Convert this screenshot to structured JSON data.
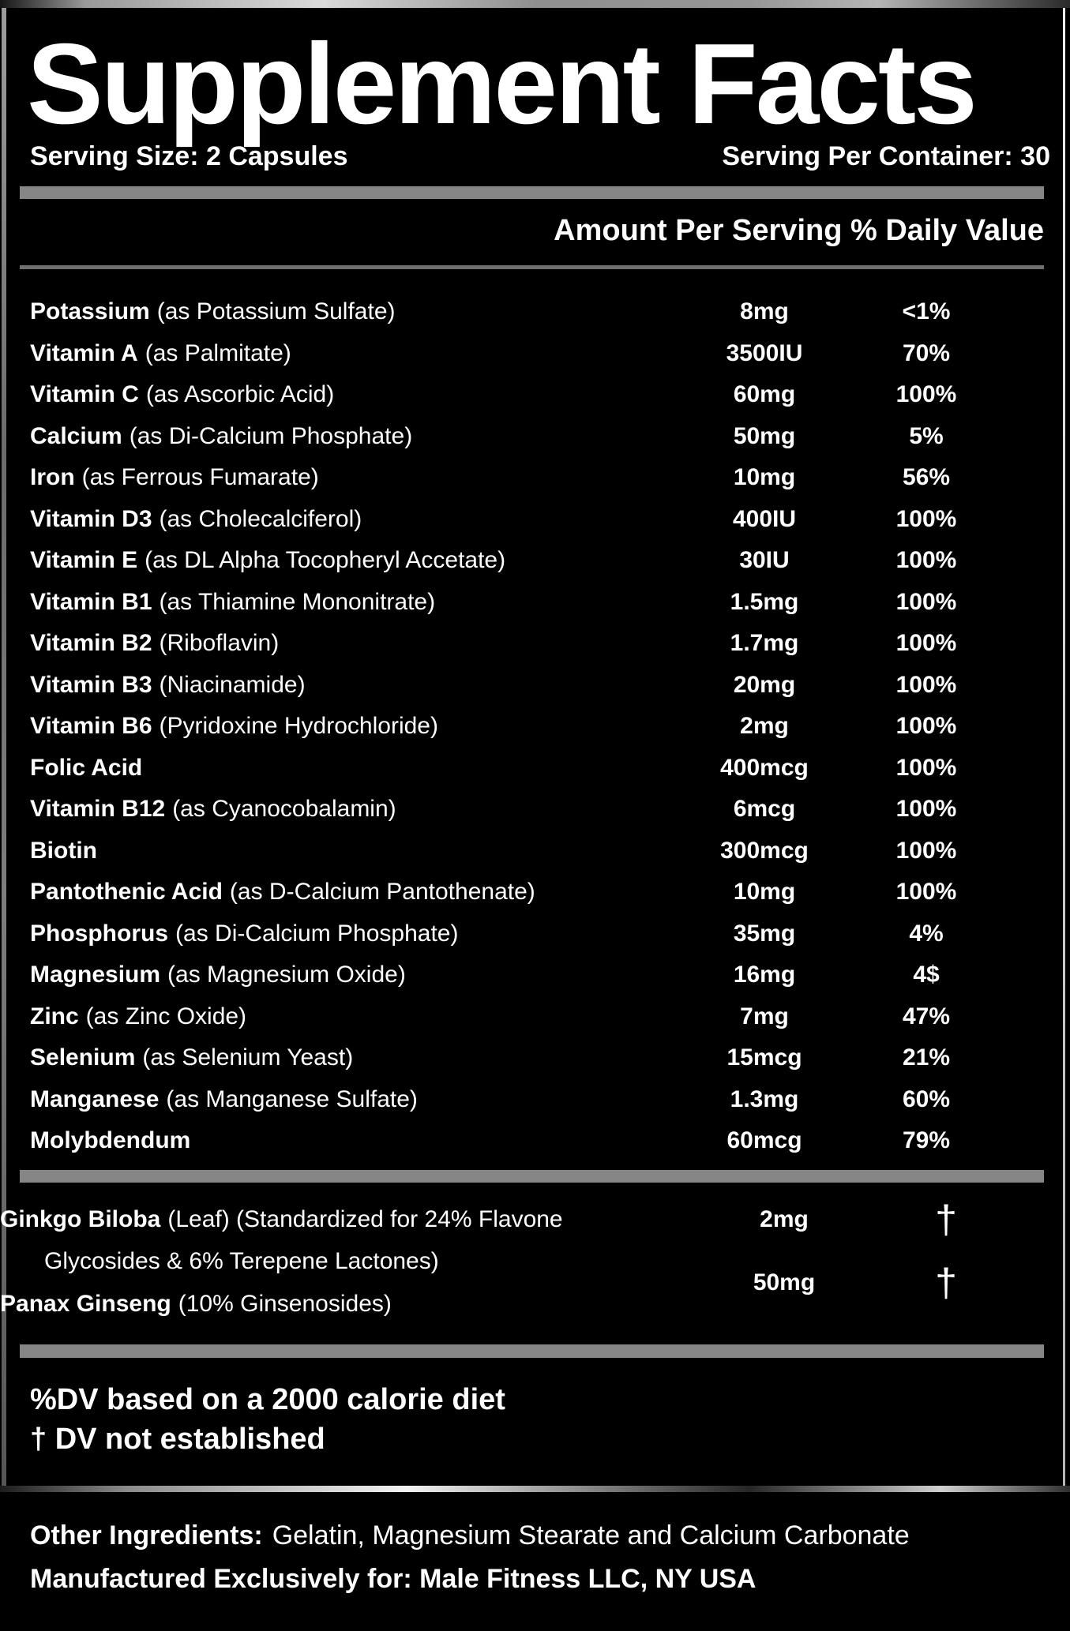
{
  "title": "Supplement Facts",
  "serving": {
    "size": "Serving Size: 2 Capsules",
    "per_container": "Serving Per Container: 30"
  },
  "column_header": "Amount Per Serving % Daily Value",
  "rows": [
    {
      "name": "Potassium",
      "detail": "(as Potassium Sulfate)",
      "amount": "8mg",
      "dv": "<1%"
    },
    {
      "name": "Vitamin A",
      "detail": "(as Palmitate)",
      "amount": "3500IU",
      "dv": "70%"
    },
    {
      "name": "Vitamin C",
      "detail": "(as Ascorbic Acid)",
      "amount": "60mg",
      "dv": "100%"
    },
    {
      "name": "Calcium",
      "detail": "(as Di-Calcium Phosphate)",
      "amount": "50mg",
      "dv": "5%"
    },
    {
      "name": "Iron",
      "detail": "(as Ferrous Fumarate)",
      "amount": "10mg",
      "dv": "56%"
    },
    {
      "name": "Vitamin D3",
      "detail": "(as Cholecalciferol)",
      "amount": "400IU",
      "dv": "100%"
    },
    {
      "name": "Vitamin E",
      "detail": "(as DL Alpha Tocopheryl Accetate)",
      "amount": "30IU",
      "dv": "100%"
    },
    {
      "name": "Vitamin B1",
      "detail": "(as Thiamine Mononitrate)",
      "amount": "1.5mg",
      "dv": "100%"
    },
    {
      "name": "Vitamin B2",
      "detail": "(Riboflavin)",
      "amount": "1.7mg",
      "dv": "100%"
    },
    {
      "name": "Vitamin B3",
      "detail": "(Niacinamide)",
      "amount": "20mg",
      "dv": "100%"
    },
    {
      "name": "Vitamin B6",
      "detail": "(Pyridoxine Hydrochloride)",
      "amount": "2mg",
      "dv": "100%"
    },
    {
      "name": "Folic Acid",
      "detail": "",
      "amount": "400mcg",
      "dv": "100%"
    },
    {
      "name": "Vitamin B12",
      "detail": "(as Cyanocobalamin)",
      "amount": "6mcg",
      "dv": "100%"
    },
    {
      "name": "Biotin",
      "detail": "",
      "amount": "300mcg",
      "dv": "100%"
    },
    {
      "name": "Pantothenic Acid",
      "detail": "(as D-Calcium Pantothenate)",
      "amount": "10mg",
      "dv": "100%"
    },
    {
      "name": "Phosphorus",
      "detail": "(as Di-Calcium Phosphate)",
      "amount": "35mg",
      "dv": "4%"
    },
    {
      "name": "Magnesium",
      "detail": "(as Magnesium Oxide)",
      "amount": "16mg",
      "dv": "4$"
    },
    {
      "name": "Zinc",
      "detail": "(as Zinc Oxide)",
      "amount": "7mg",
      "dv": "47%"
    },
    {
      "name": "Selenium",
      "detail": "(as Selenium Yeast)",
      "amount": "15mcg",
      "dv": "21%"
    },
    {
      "name": "Manganese",
      "detail": "(as Manganese Sulfate)",
      "amount": "1.3mg",
      "dv": "60%"
    },
    {
      "name": "Molybdendum",
      "detail": "",
      "amount": "60mcg",
      "dv": "79%"
    }
  ],
  "botanicals": {
    "ginkgo": {
      "name": "Ginkgo Biloba",
      "detail": "(Leaf) (Standardized for 24% Flavone",
      "detail_line2": "Glycosides & 6% Terepene Lactones)",
      "amount": "2mg",
      "dv": "†"
    },
    "panax": {
      "name": "Panax Ginseng",
      "detail": "(10% Ginsenosides)",
      "amount": "50mg",
      "dv": "†"
    }
  },
  "footnotes": [
    "%DV based on a 2000 calorie diet",
    "† DV not established"
  ],
  "other_ingredients": {
    "label": "Other Ingredients:",
    "text": "Gelatin, Magnesium Stearate and Calcium Carbonate"
  },
  "manufactured": "Manufactured Exclusively for: Male Fitness LLC, NY USA",
  "colors": {
    "background": "#000000",
    "text": "#ffffff",
    "divider_thick": "#868686",
    "divider_thin": "#6f6f6f",
    "metal_light": "#d9d9d9",
    "metal_dark": "#1c1c1c"
  }
}
